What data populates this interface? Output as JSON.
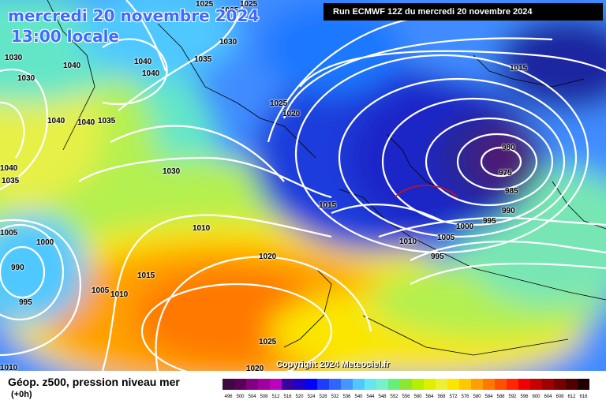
{
  "header": {
    "date_line": "mercredi 20 novembre 2024",
    "time_line": "13:00 locale",
    "run_info": "Run ECMWF 12Z du mercredi 20 novembre 2024"
  },
  "footer": {
    "copyright": "Copyright 2024 Meteociel.fr",
    "legend_title": "Géop. z500, pression niveau mer",
    "legend_sub": "(+0h)"
  },
  "scale": {
    "labels": [
      "496",
      "500",
      "504",
      "508",
      "512",
      "516",
      "520",
      "524",
      "528",
      "532",
      "536",
      "540",
      "544",
      "548",
      "552",
      "556",
      "560",
      "564",
      "568",
      "572",
      "576",
      "580",
      "584",
      "588",
      "592",
      "596",
      "600",
      "604",
      "608",
      "612",
      "616"
    ],
    "colors": [
      "#3c0a3c",
      "#5a005a",
      "#820082",
      "#a000a0",
      "#be00be",
      "#3c00a0",
      "#1e00c8",
      "#0000ff",
      "#1e3cff",
      "#3264ff",
      "#4696ff",
      "#50c8ff",
      "#64e6f0",
      "#78f0c8",
      "#64f078",
      "#8ce632",
      "#b4f000",
      "#dcf000",
      "#f0f032",
      "#fae600",
      "#ffc800",
      "#ffa000",
      "#ff7800",
      "#ff5000",
      "#ff2800",
      "#f00000",
      "#c80000",
      "#a00000",
      "#780000",
      "#500000",
      "#1e0000"
    ]
  },
  "isobars": [
    {
      "v": "1025",
      "t": "iso-1025-a"
    },
    {
      "v": "1025",
      "t": "iso-1025-b"
    },
    {
      "v": "1030",
      "t": "iso-1030-a"
    },
    {
      "v": "1030",
      "t": "iso-1030-b"
    },
    {
      "v": "1040",
      "t": "iso-1040-a"
    },
    {
      "v": "1040",
      "t": "iso-1040-b"
    },
    {
      "v": "1040",
      "t": "iso-1040-c"
    },
    {
      "v": "1035",
      "t": "iso-1035-a"
    },
    {
      "v": "1040",
      "t": "iso-1040-d"
    },
    {
      "v": "1040",
      "t": "iso-1040-e"
    },
    {
      "v": "1035",
      "t": "iso-1035-b"
    },
    {
      "v": "1025",
      "t": "iso-1025-c"
    },
    {
      "v": "1020",
      "t": "iso-1020-a"
    },
    {
      "v": "1030",
      "t": "iso-1030-c"
    },
    {
      "v": "1015",
      "t": "iso-1015-a"
    },
    {
      "v": "1040",
      "t": "iso-1040-f"
    },
    {
      "v": "1035",
      "t": "iso-1035-c"
    },
    {
      "v": "1010",
      "t": "iso-1010-a"
    },
    {
      "v": "1005",
      "t": "iso-1005-a"
    },
    {
      "v": "1000",
      "t": "iso-1000-a"
    },
    {
      "v": "990",
      "t": "iso-990-a"
    },
    {
      "v": "995",
      "t": "iso-995-a"
    },
    {
      "v": "1005",
      "t": "iso-1005-b"
    },
    {
      "v": "1010",
      "t": "iso-1010-b"
    },
    {
      "v": "1015",
      "t": "iso-1015-b"
    },
    {
      "v": "1020",
      "t": "iso-1020-b"
    },
    {
      "v": "1025",
      "t": "iso-1025-d"
    },
    {
      "v": "1010",
      "t": "iso-1010-c"
    },
    {
      "v": "1005",
      "t": "iso-1005-c"
    },
    {
      "v": "1000",
      "t": "iso-1000-b"
    },
    {
      "v": "995",
      "t": "iso-995-b"
    },
    {
      "v": "995",
      "t": "iso-995-c"
    },
    {
      "v": "990",
      "t": "iso-990-b"
    },
    {
      "v": "985",
      "t": "iso-985"
    },
    {
      "v": "980",
      "t": "iso-980"
    },
    {
      "v": "975",
      "t": "iso-975"
    },
    {
      "v": "1015",
      "t": "iso-1015-c"
    },
    {
      "v": "1020",
      "t": "iso-1020-c"
    },
    {
      "v": "1010",
      "t": "iso-1010-d"
    },
    {
      "v": "1030",
      "t": "iso-1030-d"
    },
    {
      "v": "1025",
      "t": "iso-1025-e"
    }
  ]
}
